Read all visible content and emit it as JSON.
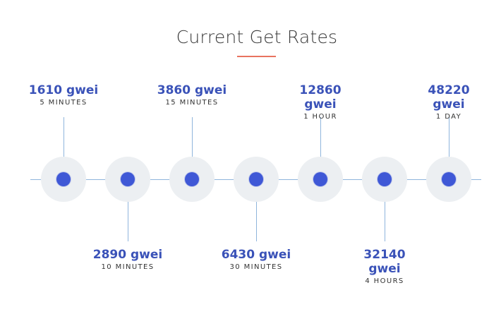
{
  "title": "Current Get Rates",
  "colors": {
    "accent_underline": "#e8735f",
    "value_text": "#3a52b8",
    "dot": "#3f58d6",
    "halo": "#eceff2",
    "line": "#8fb5dc"
  },
  "rates": [
    {
      "value": "1610 gwei",
      "duration": "5 MINUTES"
    },
    {
      "value": "2890 gwei",
      "duration": "10 MINUTES"
    },
    {
      "value": "3860 gwei",
      "duration": "15 MINUTES"
    },
    {
      "value": "6430 gwei",
      "duration": "30 MINUTES"
    },
    {
      "value": "12860 gwei",
      "duration": "1 HOUR"
    },
    {
      "value": "32140 gwei",
      "duration": "4 HOURS"
    },
    {
      "value": "48220 gwei",
      "duration": "1 DAY"
    }
  ]
}
